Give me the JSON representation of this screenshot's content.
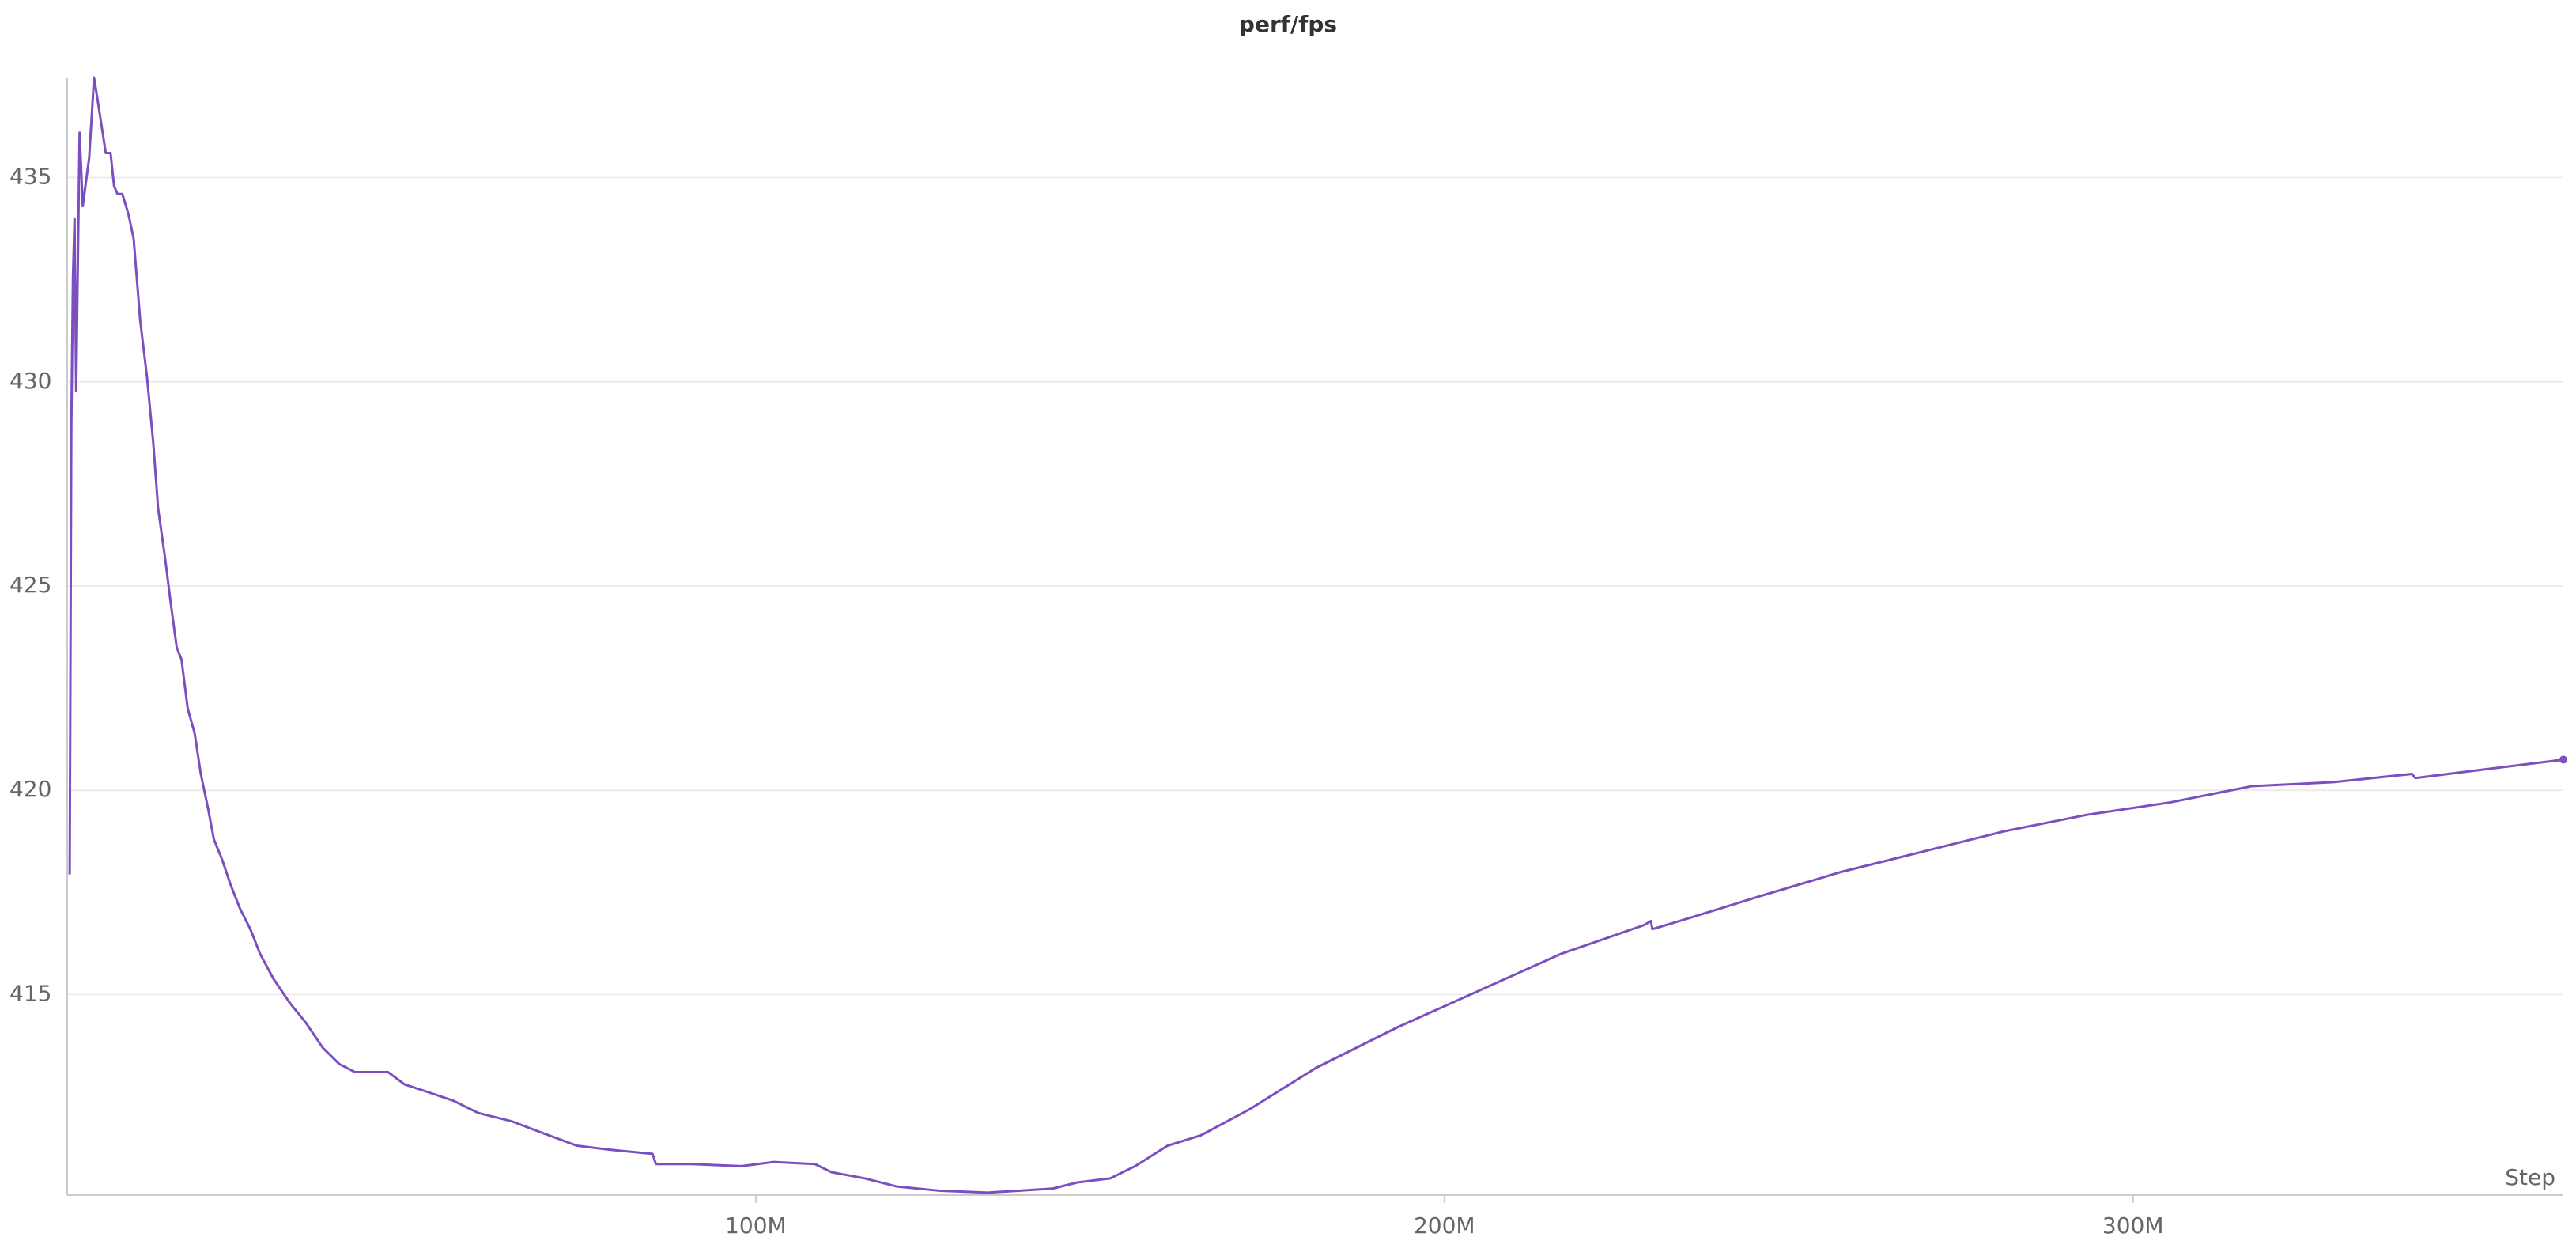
{
  "chart_data": {
    "type": "line",
    "title": "perf/fps",
    "x_label": "Step",
    "x": [
      360000,
      600000,
      830000,
      1070000,
      1300000,
      1800000,
      2260000,
      3200000,
      3900000,
      4600000,
      5600000,
      6300000,
      6800000,
      7300000,
      8000000,
      8900000,
      9650000,
      10600000,
      11600000,
      12500000,
      13200000,
      14200000,
      15100000,
      15900000,
      16600000,
      17500000,
      18500000,
      19400000,
      20400000,
      21300000,
      22500000,
      23700000,
      25100000,
      26600000,
      28000000,
      29900000,
      32300000,
      34700000,
      37100000,
      39500000,
      41800000,
      44200000,
      46600000,
      49000000,
      52600000,
      56100000,
      59700000,
      64500000,
      69200000,
      74000000,
      78800000,
      85000000,
      85500000,
      90700000,
      97900000,
      102600000,
      108600000,
      111000000,
      115800000,
      120500000,
      126500000,
      133700000,
      138400000,
      143100000,
      146700000,
      151500000,
      155100000,
      159800000,
      164600000,
      171800000,
      181300000,
      193200000,
      205100000,
      217000000,
      229000000,
      230000000,
      230200000,
      236100000,
      245700000,
      257600000,
      269500000,
      281400000,
      293300000,
      305300000,
      317200000,
      329100000,
      340500000,
      341000000,
      350500000,
      362500000
    ],
    "values": [
      417.94,
      428.9,
      432.5,
      434.0,
      429.77,
      436.1,
      434.3,
      435.5,
      437.45,
      436.7,
      435.6,
      435.6,
      434.8,
      434.6,
      434.6,
      434.1,
      433.5,
      431.5,
      430.1,
      428.5,
      426.9,
      425.7,
      424.5,
      423.5,
      423.2,
      422.0,
      421.4,
      420.4,
      419.6,
      418.8,
      418.3,
      417.7,
      417.1,
      416.6,
      416.0,
      415.4,
      414.8,
      414.3,
      413.7,
      413.3,
      413.1,
      413.1,
      413.1,
      412.8,
      412.6,
      412.4,
      412.1,
      411.9,
      411.6,
      411.3,
      411.2,
      411.1,
      410.85,
      410.85,
      410.8,
      410.9,
      410.85,
      410.65,
      410.5,
      410.3,
      410.2,
      410.15,
      410.2,
      410.25,
      410.4,
      410.5,
      410.8,
      411.3,
      411.55,
      412.2,
      413.2,
      414.2,
      415.1,
      416.0,
      416.7,
      416.8,
      416.6,
      416.9,
      417.4,
      418.0,
      418.5,
      419.0,
      419.4,
      419.7,
      420.1,
      420.2,
      420.4,
      420.3,
      420.5,
      420.75
    ],
    "color": "#7b4fc0",
    "xlim": [
      0,
      362500000
    ],
    "xticks": [
      {
        "value": 100000000,
        "label": "100M"
      },
      {
        "value": 200000000,
        "label": "200M"
      },
      {
        "value": 300000000,
        "label": "300M"
      }
    ],
    "ylim": [
      410.09,
      437.45
    ],
    "yticks": [
      415,
      420,
      425,
      430,
      435
    ],
    "grid": true
  }
}
